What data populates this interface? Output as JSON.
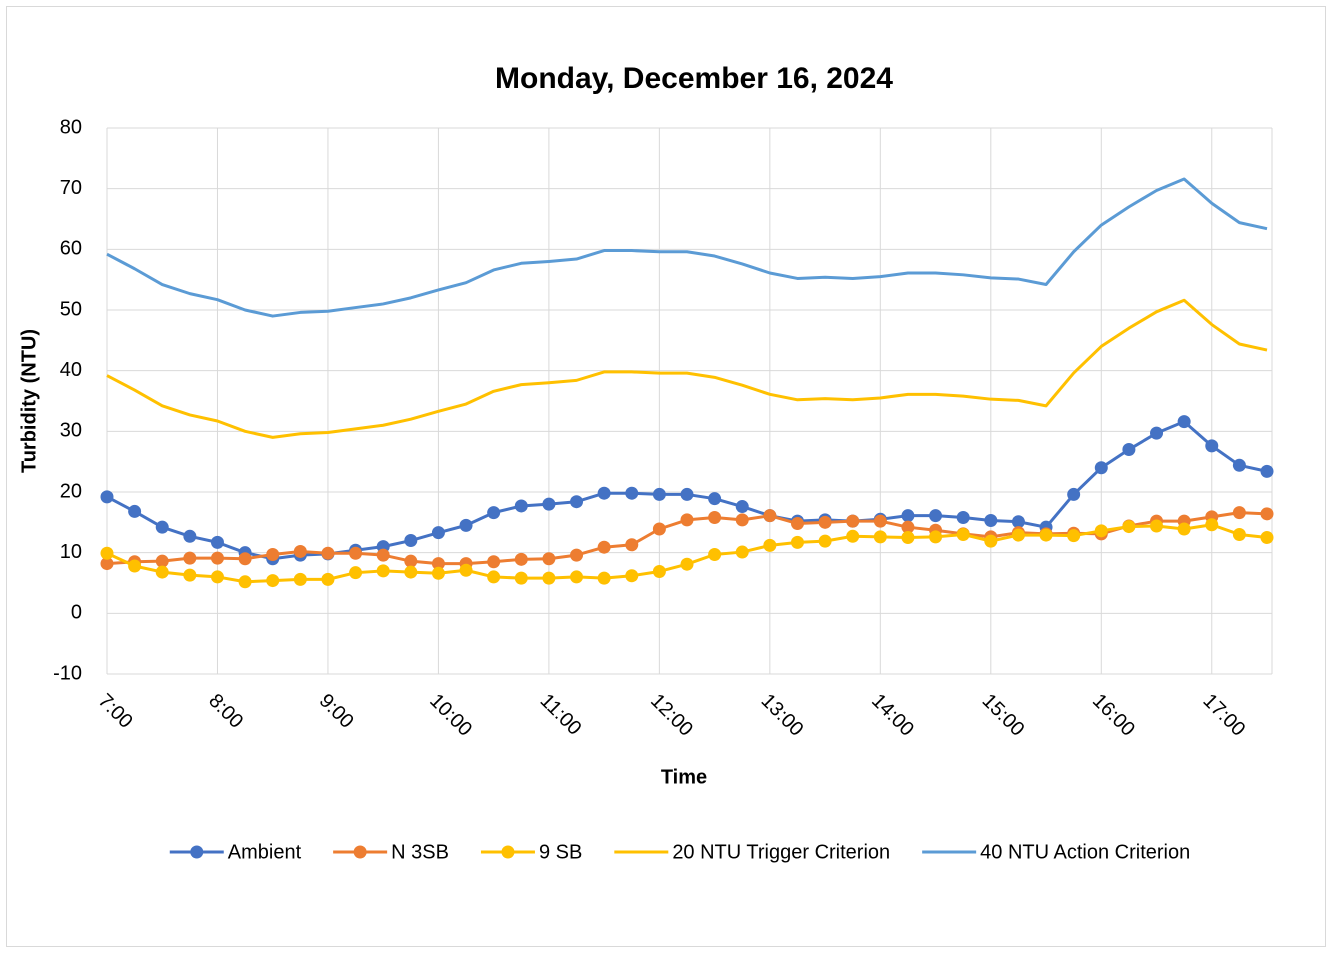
{
  "chart_data": {
    "type": "line",
    "title": "Monday, December 16, 2024",
    "x_label": "Time",
    "y_label": "Turbidity (NTU)",
    "categories": [
      "7:00",
      null,
      null,
      null,
      "8:00",
      null,
      null,
      null,
      "9:00",
      null,
      null,
      null,
      "10:00",
      null,
      null,
      null,
      "11:00",
      null,
      null,
      null,
      "12:00",
      null,
      null,
      null,
      "13:00",
      null,
      null,
      null,
      "14:00",
      null,
      null,
      null,
      "15:00",
      null,
      null,
      null,
      "16:00",
      null,
      null,
      null,
      "17:00",
      null,
      null
    ],
    "ylim": [
      -10,
      80
    ],
    "yticks": [
      -10,
      0,
      10,
      20,
      30,
      40,
      50,
      60,
      70,
      80
    ],
    "grid": true,
    "legend": "bottom",
    "series": [
      {
        "name": "Ambient",
        "color": "#4472c4",
        "marker": true,
        "values": [
          19.2,
          16.8,
          14.2,
          12.7,
          11.7,
          10.0,
          9.0,
          9.6,
          9.8,
          10.4,
          11.0,
          12.0,
          13.3,
          14.5,
          16.6,
          17.7,
          18.0,
          18.4,
          19.8,
          19.8,
          19.6,
          19.6,
          18.9,
          17.6,
          16.1,
          15.2,
          15.4,
          15.2,
          15.5,
          16.1,
          16.1,
          15.8,
          15.3,
          15.1,
          14.2,
          19.6,
          24.0,
          27.0,
          29.7,
          31.6,
          27.6,
          24.4,
          23.4
        ]
      },
      {
        "name": "N 3SB",
        "color": "#ed7d31",
        "marker": true,
        "values": [
          8.2,
          8.5,
          8.6,
          9.1,
          9.1,
          9.0,
          9.7,
          10.2,
          9.9,
          9.9,
          9.6,
          8.6,
          8.2,
          8.2,
          8.5,
          8.9,
          9.0,
          9.6,
          10.9,
          11.3,
          13.9,
          15.4,
          15.8,
          15.4,
          16.1,
          14.8,
          15.0,
          15.2,
          15.2,
          14.2,
          13.7,
          13.1,
          12.6,
          13.3,
          13.1,
          13.2,
          13.1,
          14.4,
          15.2,
          15.2,
          15.9,
          16.6,
          16.4
        ]
      },
      {
        "name": "9 SB",
        "color": "#ffc000",
        "marker": true,
        "values": [
          9.9,
          7.8,
          6.8,
          6.3,
          6.0,
          5.2,
          5.4,
          5.6,
          5.6,
          6.7,
          7.0,
          6.8,
          6.6,
          7.1,
          6.0,
          5.8,
          5.8,
          6.0,
          5.8,
          6.2,
          6.9,
          8.1,
          9.7,
          10.1,
          11.2,
          11.7,
          11.9,
          12.7,
          12.6,
          12.5,
          12.6,
          13.0,
          11.9,
          12.9,
          12.9,
          12.8,
          13.6,
          14.3,
          14.4,
          13.9,
          14.6,
          13.0,
          12.5
        ]
      },
      {
        "name": "20 NTU Trigger Criterion",
        "color": "#ffc000",
        "marker": false,
        "values": [
          39.2,
          36.8,
          34.2,
          32.7,
          31.7,
          30.0,
          29.0,
          29.6,
          29.8,
          30.4,
          31.0,
          32.0,
          33.3,
          34.5,
          36.6,
          37.7,
          38.0,
          38.4,
          39.8,
          39.8,
          39.6,
          39.6,
          38.9,
          37.6,
          36.1,
          35.2,
          35.4,
          35.2,
          35.5,
          36.1,
          36.1,
          35.8,
          35.3,
          35.1,
          34.2,
          39.6,
          44.0,
          47.0,
          49.7,
          51.6,
          47.6,
          44.4,
          43.4
        ]
      },
      {
        "name": "40 NTU Action Criterion",
        "color": "#5b9bd5",
        "marker": false,
        "values": [
          59.2,
          56.8,
          54.2,
          52.7,
          51.7,
          50.0,
          49.0,
          49.6,
          49.8,
          50.4,
          51.0,
          52.0,
          53.3,
          54.5,
          56.6,
          57.7,
          58.0,
          58.4,
          59.8,
          59.8,
          59.6,
          59.6,
          58.9,
          57.6,
          56.1,
          55.2,
          55.4,
          55.2,
          55.5,
          56.1,
          56.1,
          55.8,
          55.3,
          55.1,
          54.2,
          59.6,
          64.0,
          67.0,
          69.7,
          71.6,
          67.6,
          64.4,
          63.4
        ]
      }
    ]
  }
}
